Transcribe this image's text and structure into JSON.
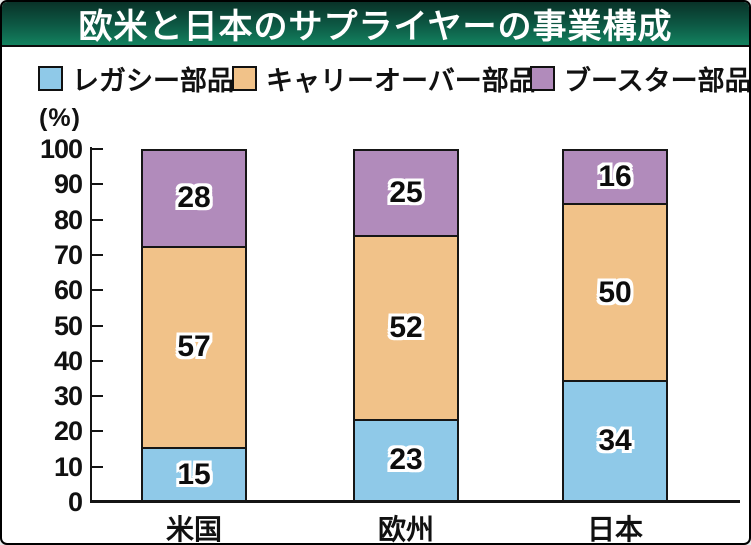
{
  "title": "欧米と日本のサプライヤーの事業構成",
  "legend": {
    "items": [
      {
        "label": "レガシー部品",
        "color": "#8FC9E8"
      },
      {
        "label": "キャリーオーバー部品",
        "color": "#F1C289"
      },
      {
        "label": "ブースター部品",
        "color": "#B18BBB"
      }
    ]
  },
  "colors": {
    "title_gradient_top": "#093228",
    "title_gradient_bottom": "#13825F",
    "title_text": "#FFFFFF",
    "axis": "#141414",
    "bar_border": "#161616",
    "value_label_text": "#0D0D0D",
    "value_label_halo": "#FFFFFF"
  },
  "chart_data": {
    "type": "bar",
    "subtype": "stacked-column-percent",
    "title": "欧米と日本のサプライヤーの事業構成",
    "unit_label": "(%)",
    "categories": [
      "米国",
      "欧州",
      "日本"
    ],
    "series": [
      {
        "name": "レガシー部品",
        "color": "#8FC9E8",
        "values": [
          15,
          23,
          34
        ]
      },
      {
        "name": "キャリーオーバー部品",
        "color": "#F1C289",
        "values": [
          57,
          52,
          50
        ]
      },
      {
        "name": "ブースター部品",
        "color": "#B18BBB",
        "values": [
          28,
          25,
          16
        ]
      }
    ],
    "xlabel": "",
    "ylabel": "(%)",
    "ylim": [
      0,
      100
    ],
    "ytick_interval": 10,
    "yticks": [
      0,
      10,
      20,
      30,
      40,
      50,
      60,
      70,
      80,
      90,
      100
    ],
    "grid": false,
    "legend_position": "top",
    "value_labels_shown": true
  }
}
